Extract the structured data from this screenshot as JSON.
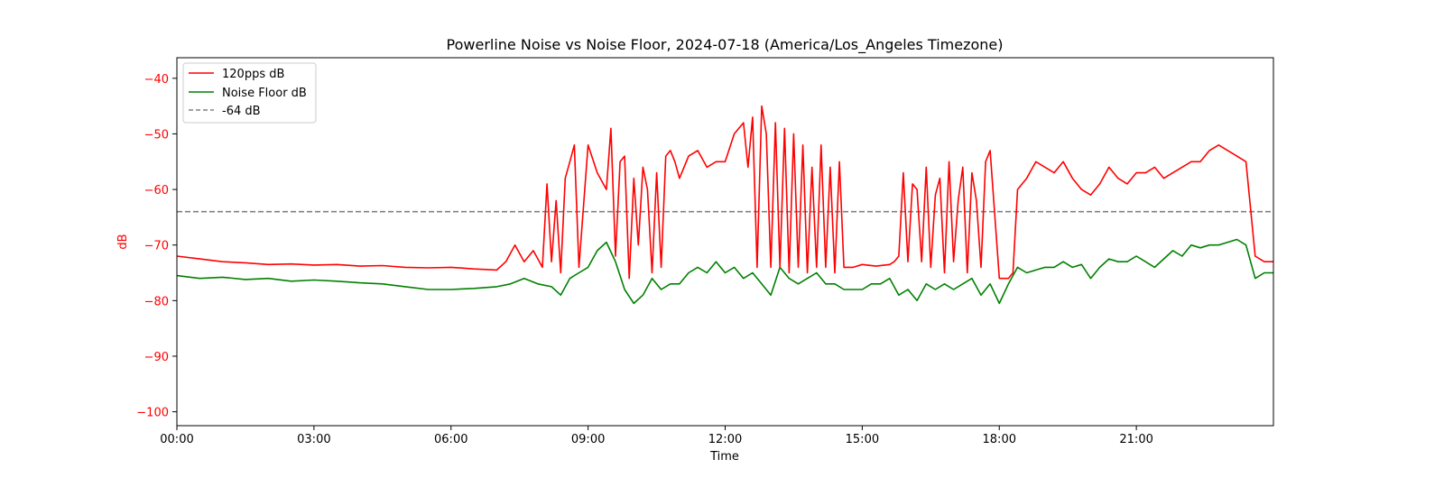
{
  "chart_data": {
    "type": "line",
    "title": "Powerline Noise vs Noise Floor, 2024-07-18 (America/Los_Angeles Timezone)",
    "xlabel": "Time",
    "ylabel": "dB",
    "x_ticks": [
      "00:00",
      "03:00",
      "06:00",
      "09:00",
      "12:00",
      "15:00",
      "18:00",
      "21:00"
    ],
    "y_ticks": [
      -40,
      -50,
      -60,
      -70,
      -80,
      -90,
      -100
    ],
    "xlim_hours": [
      0,
      24
    ],
    "ylim": [
      -102.5,
      -36.3
    ],
    "grid": false,
    "legend_position": "upper-left",
    "colors": {
      "signal": "#ff0000",
      "floor": "#008000",
      "threshold": "#808080",
      "ylabel": "#ff0000",
      "ytick": "#ff0000"
    },
    "legend": [
      "120pps dB",
      "Noise Floor dB",
      "-64 dB"
    ],
    "threshold_db": -64,
    "series": [
      {
        "name": "120pps dB",
        "x_hours": [
          0,
          0.5,
          1,
          1.5,
          2,
          2.5,
          3,
          3.5,
          4,
          4.5,
          5,
          5.5,
          6,
          6.5,
          7,
          7.2,
          7.4,
          7.6,
          7.8,
          8.0,
          8.1,
          8.2,
          8.3,
          8.4,
          8.5,
          8.6,
          8.7,
          8.8,
          9.0,
          9.2,
          9.4,
          9.5,
          9.6,
          9.7,
          9.8,
          9.9,
          10.0,
          10.1,
          10.2,
          10.3,
          10.4,
          10.5,
          10.6,
          10.7,
          10.8,
          10.9,
          11.0,
          11.2,
          11.4,
          11.6,
          11.8,
          12.0,
          12.2,
          12.4,
          12.5,
          12.6,
          12.7,
          12.8,
          12.9,
          13.0,
          13.1,
          13.2,
          13.3,
          13.4,
          13.5,
          13.6,
          13.7,
          13.8,
          13.9,
          14.0,
          14.1,
          14.2,
          14.3,
          14.4,
          14.5,
          14.6,
          14.8,
          15.0,
          15.3,
          15.6,
          15.7,
          15.8,
          15.9,
          16.0,
          16.1,
          16.2,
          16.3,
          16.4,
          16.5,
          16.6,
          16.7,
          16.8,
          16.9,
          17.0,
          17.1,
          17.2,
          17.3,
          17.4,
          17.5,
          17.6,
          17.7,
          17.8,
          18.0,
          18.2,
          18.3,
          18.4,
          18.6,
          18.8,
          19.0,
          19.2,
          19.4,
          19.6,
          19.8,
          20.0,
          20.2,
          20.4,
          20.6,
          20.8,
          21.0,
          21.2,
          21.4,
          21.6,
          21.8,
          22.0,
          22.2,
          22.4,
          22.6,
          22.8,
          23.0,
          23.2,
          23.4,
          23.6,
          23.8,
          24.0
        ],
        "values": [
          -72,
          -72.5,
          -73,
          -73.2,
          -73.5,
          -73.4,
          -73.6,
          -73.5,
          -73.8,
          -73.7,
          -74,
          -74.1,
          -74,
          -74.3,
          -74.5,
          -73,
          -70,
          -73,
          -71,
          -74,
          -59,
          -73,
          -62,
          -75,
          -58,
          -55,
          -52,
          -74,
          -52,
          -57,
          -60,
          -49,
          -72,
          -55,
          -54,
          -76,
          -58,
          -70,
          -56,
          -60,
          -75,
          -57,
          -74,
          -54,
          -53,
          -55,
          -58,
          -54,
          -53,
          -56,
          -55,
          -55,
          -50,
          -48,
          -56,
          -47,
          -74,
          -45,
          -50,
          -74,
          -48,
          -74,
          -49,
          -75,
          -50,
          -74,
          -52,
          -75,
          -56,
          -74,
          -52,
          -74,
          -56,
          -75,
          -55,
          -74,
          -74,
          -73.5,
          -73.8,
          -73.5,
          -73,
          -72,
          -57,
          -73,
          -59,
          -60,
          -73,
          -56,
          -74,
          -61,
          -58,
          -75,
          -55,
          -73,
          -62,
          -56,
          -75,
          -57,
          -62,
          -74,
          -55,
          -53,
          -76,
          -76,
          -75,
          -60,
          -58,
          -55,
          -56,
          -57,
          -55,
          -58,
          -60,
          -61,
          -59,
          -56,
          -58,
          -59,
          -57,
          -57,
          -56,
          -58,
          -57,
          -56,
          -55,
          -55,
          -53,
          -52,
          -53,
          -54,
          -55,
          -72,
          -73,
          -73
        ]
      },
      {
        "name": "Noise Floor dB",
        "x_hours": [
          0,
          0.5,
          1,
          1.5,
          2,
          2.5,
          3,
          3.5,
          4,
          4.5,
          5,
          5.5,
          6,
          6.5,
          7,
          7.3,
          7.6,
          7.9,
          8.2,
          8.4,
          8.6,
          8.8,
          9.0,
          9.2,
          9.4,
          9.6,
          9.8,
          10.0,
          10.2,
          10.4,
          10.6,
          10.8,
          11.0,
          11.2,
          11.4,
          11.6,
          11.8,
          12.0,
          12.2,
          12.4,
          12.6,
          12.8,
          13.0,
          13.2,
          13.4,
          13.6,
          13.8,
          14.0,
          14.2,
          14.4,
          14.6,
          14.8,
          15.0,
          15.2,
          15.4,
          15.6,
          15.8,
          16.0,
          16.2,
          16.4,
          16.6,
          16.8,
          17.0,
          17.2,
          17.4,
          17.6,
          17.8,
          18.0,
          18.2,
          18.4,
          18.6,
          18.8,
          19.0,
          19.2,
          19.4,
          19.6,
          19.8,
          20.0,
          20.2,
          20.4,
          20.6,
          20.8,
          21.0,
          21.2,
          21.4,
          21.6,
          21.8,
          22.0,
          22.2,
          22.4,
          22.6,
          22.8,
          23.0,
          23.2,
          23.4,
          23.6,
          23.8,
          24.0
        ],
        "values": [
          -75.5,
          -76,
          -75.8,
          -76.2,
          -76,
          -76.5,
          -76.3,
          -76.5,
          -76.8,
          -77,
          -77.5,
          -78,
          -78,
          -77.8,
          -77.5,
          -77,
          -76,
          -77,
          -77.5,
          -79,
          -76,
          -75,
          -74,
          -71,
          -69.5,
          -73,
          -78,
          -80.5,
          -79,
          -76,
          -78,
          -77,
          -77,
          -75,
          -74,
          -75,
          -73,
          -75,
          -74,
          -76,
          -75,
          -77,
          -79,
          -74,
          -76,
          -77,
          -76,
          -75,
          -77,
          -77,
          -78,
          -78,
          -78,
          -77,
          -77,
          -76,
          -79,
          -78,
          -80,
          -77,
          -78,
          -77,
          -78,
          -77,
          -76,
          -79,
          -77,
          -80.5,
          -77,
          -74,
          -75,
          -74.5,
          -74,
          -74,
          -73,
          -74,
          -73.5,
          -76,
          -74,
          -72.5,
          -73,
          -73,
          -72,
          -73,
          -74,
          -72.5,
          -71,
          -72,
          -70,
          -70.5,
          -70,
          -70,
          -69.5,
          -69,
          -70,
          -76,
          -75,
          -75
        ]
      }
    ]
  }
}
